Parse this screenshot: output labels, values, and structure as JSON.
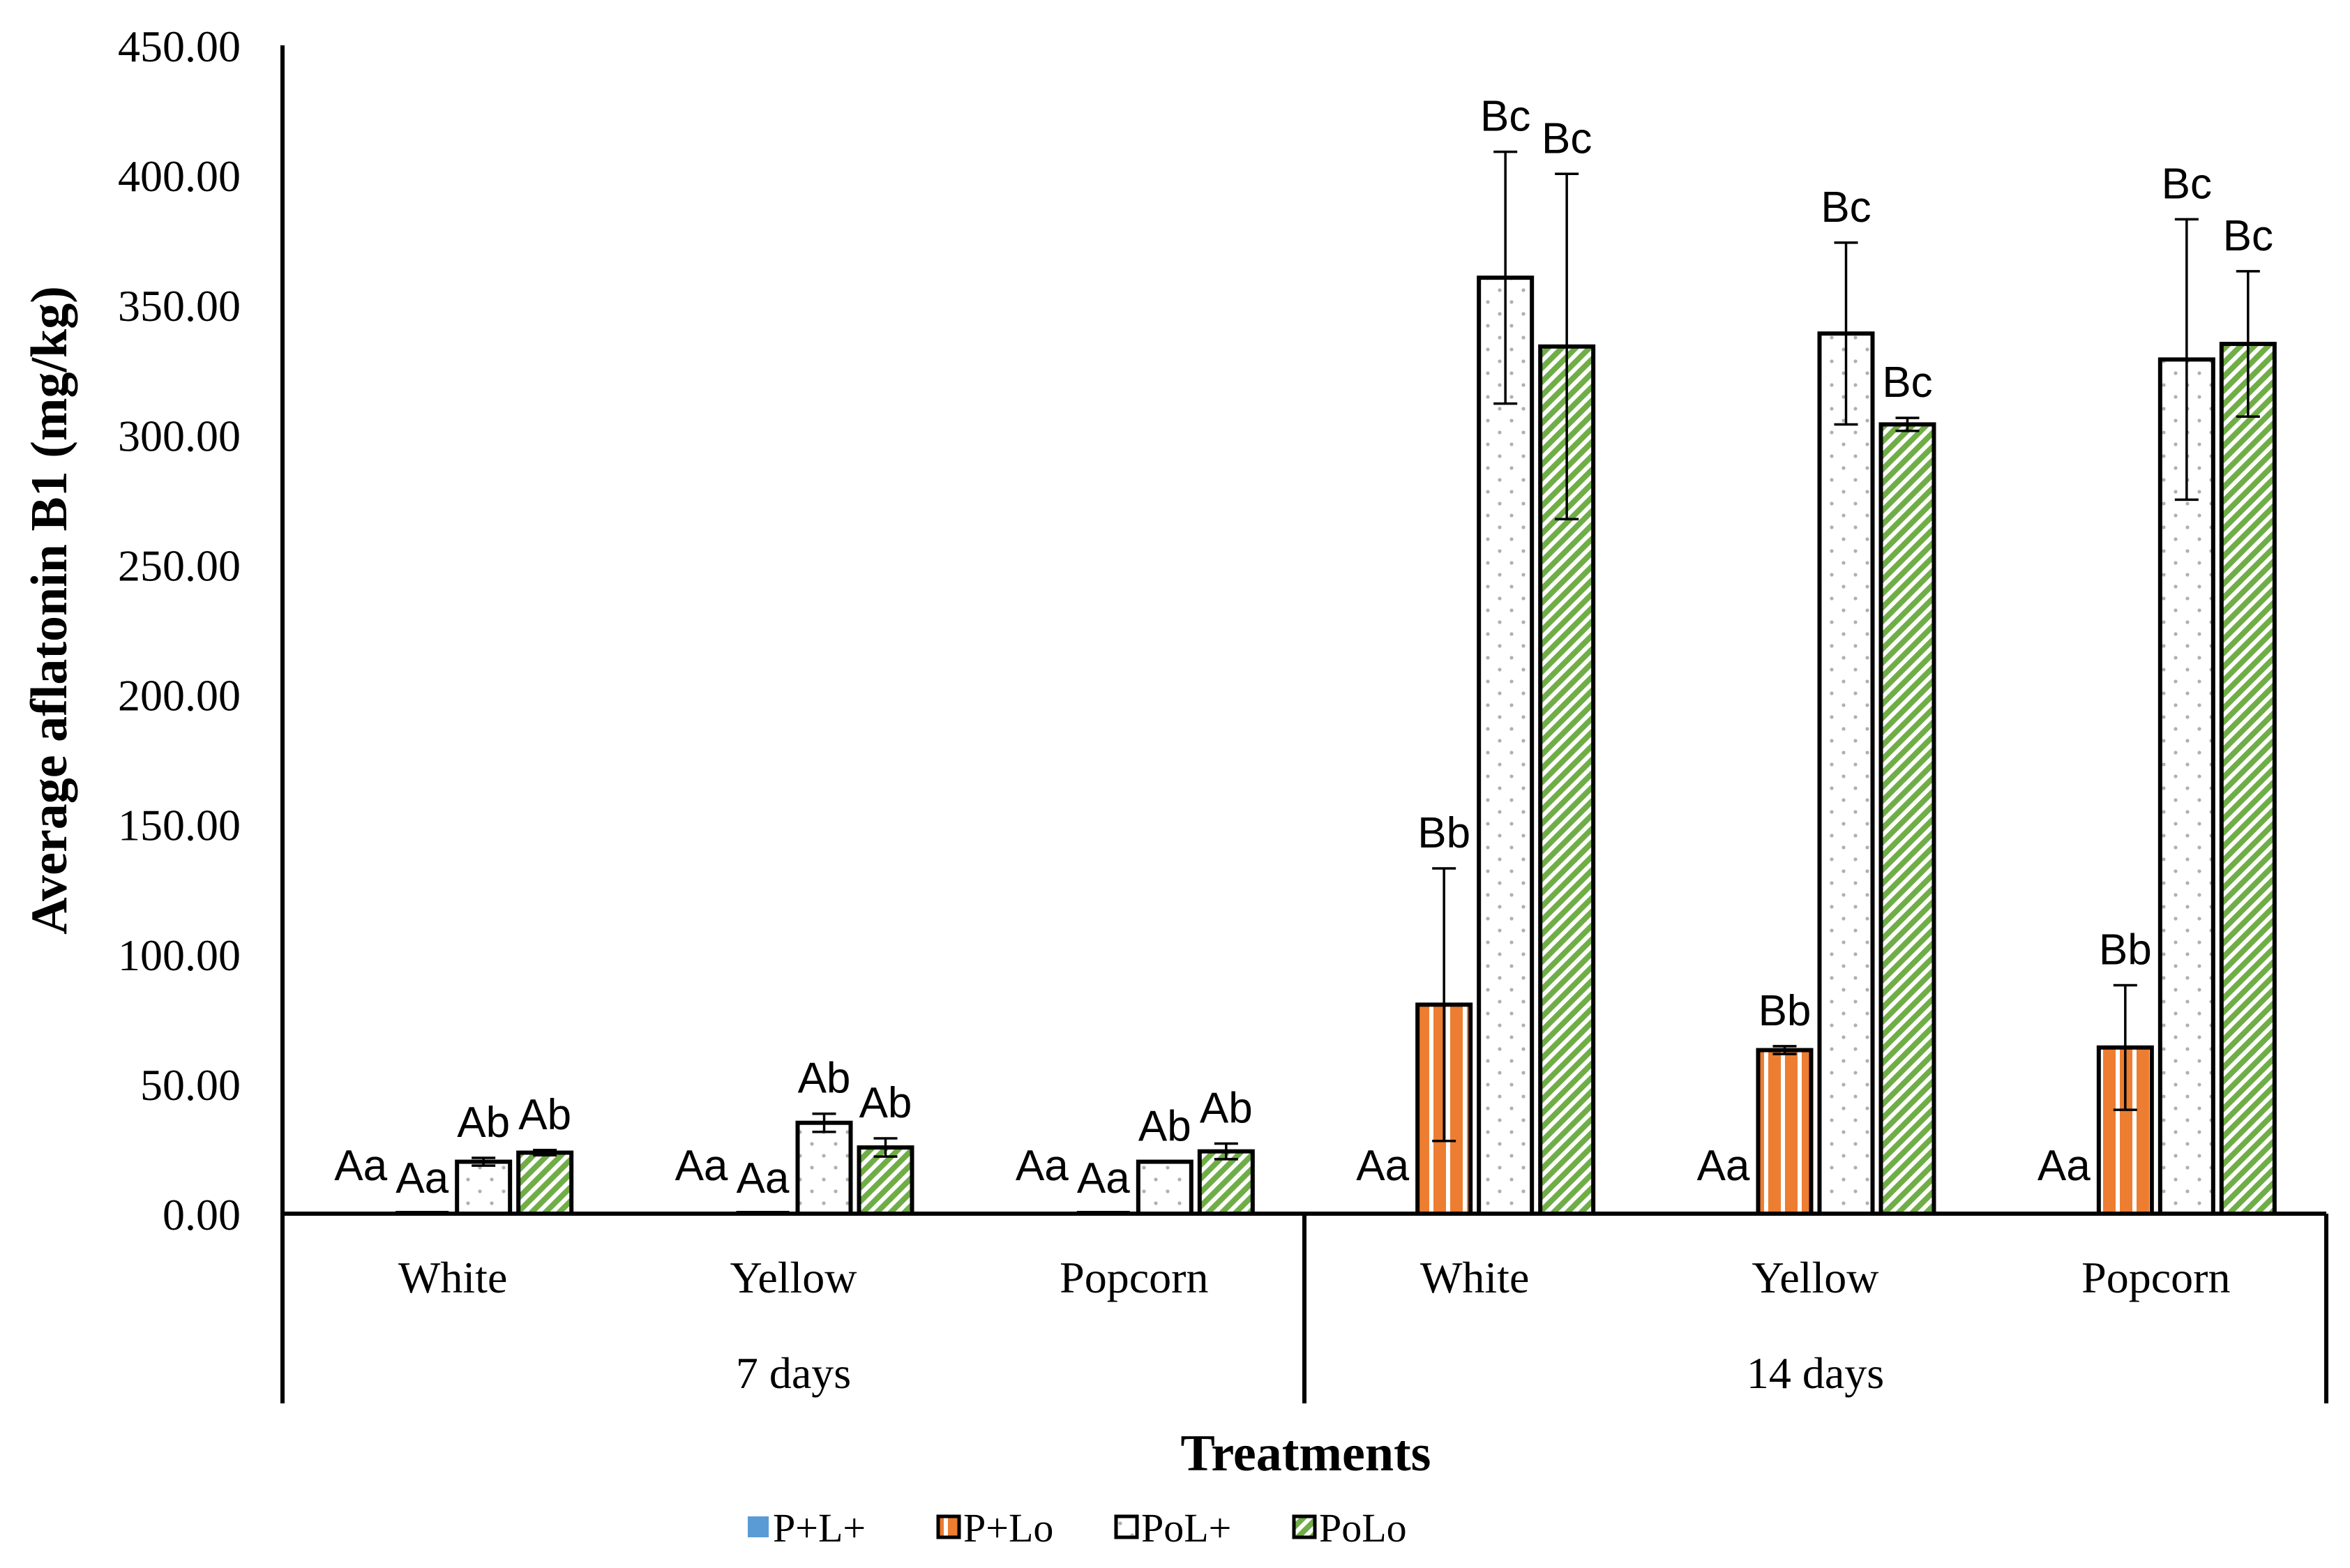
{
  "chart_data": {
    "type": "bar",
    "ylabel": "Average aflatonin B1 (mg/kg)",
    "xlabel": "Treatments",
    "ylim": [
      0,
      450
    ],
    "yticks": [
      "0.00",
      "50.00",
      "100.00",
      "150.00",
      "200.00",
      "250.00",
      "300.00",
      "350.00",
      "400.00",
      "450.00"
    ],
    "groups": [
      {
        "label": "7 days",
        "categories": [
          "White",
          "Yellow",
          "Popcorn"
        ]
      },
      {
        "label": "14 days",
        "categories": [
          "White",
          "Yellow",
          "Popcorn"
        ]
      }
    ],
    "categories": [
      "White",
      "Yellow",
      "Popcorn",
      "White",
      "Yellow",
      "Popcorn"
    ],
    "series": [
      {
        "name": "P+L+",
        "pattern": "solid",
        "color": "#5b9bd5",
        "values": [
          0,
          0,
          0,
          0,
          0,
          0
        ],
        "errors": [
          0,
          0,
          0,
          0,
          0,
          0
        ],
        "labels": [
          "Aa",
          "Aa",
          "Aa",
          "Aa",
          "Aa",
          "Aa"
        ]
      },
      {
        "name": "P+Lo",
        "pattern": "vstripes",
        "color": "#ed7d31",
        "values": [
          0,
          0,
          0,
          80.5,
          63.0,
          64.0
        ],
        "errors": [
          0,
          0,
          0,
          52.5,
          1.5,
          24.0
        ],
        "labels": [
          "Aa",
          "Aa",
          "Aa",
          "Bb",
          "Bb",
          "Bb"
        ]
      },
      {
        "name": "PoL+",
        "pattern": "dots",
        "color": "#ffffff",
        "values": [
          20.0,
          35.0,
          20.0,
          360.5,
          339.0,
          329.0
        ],
        "errors": [
          1.5,
          3.5,
          0,
          48.5,
          35.0,
          54.0
        ],
        "labels": [
          "Ab",
          "Ab",
          "Ab",
          "Bc",
          "Bc",
          "Bc"
        ]
      },
      {
        "name": "PoLo",
        "pattern": "diag",
        "color": "#70ad47",
        "values": [
          23.5,
          25.5,
          24.0,
          334.0,
          304.0,
          335.0
        ],
        "errors": [
          1.0,
          3.5,
          3.0,
          66.5,
          2.5,
          28.0
        ],
        "labels": [
          "Ab",
          "Ab",
          "Ab",
          "Bc",
          "Bc",
          "Bc"
        ]
      }
    ],
    "legend": "bottom-center"
  }
}
